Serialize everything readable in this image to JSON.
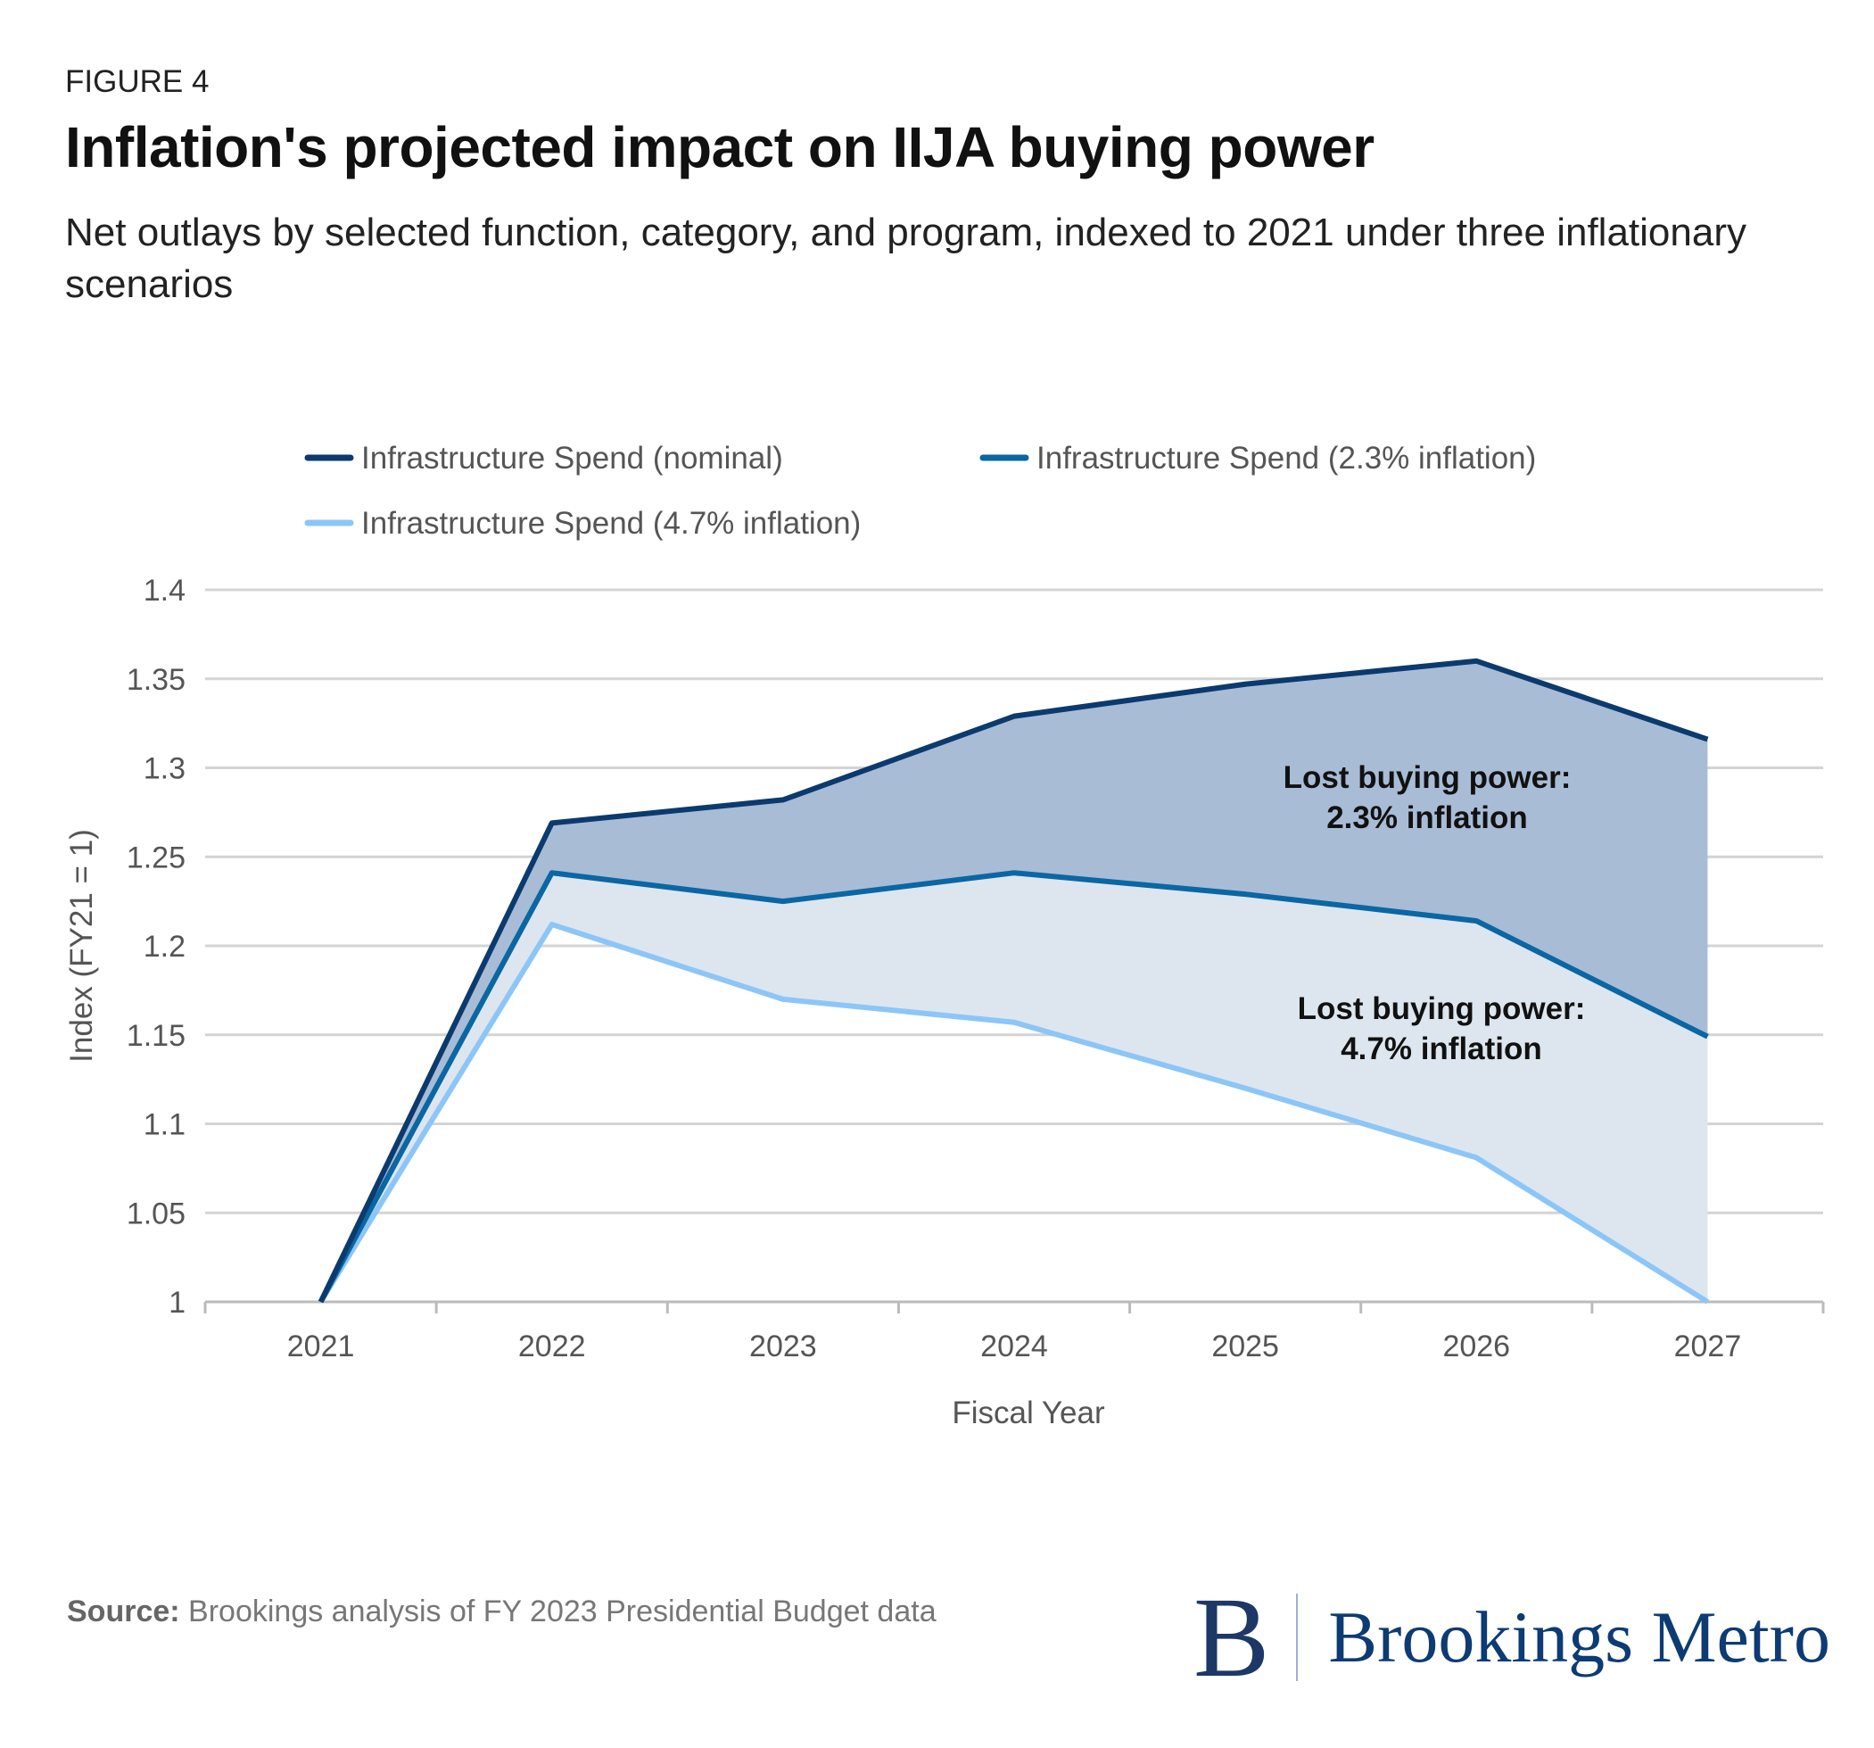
{
  "figure_label": "FIGURE 4",
  "title": "Inflation's projected impact on IIJA buying power",
  "subtitle": "Net outlays by selected function, category, and program, indexed to 2021 under three inflationary scenarios",
  "source_label": "Source:",
  "source_text": " Brookings analysis of FY 2023 Presidential Budget data",
  "logo": {
    "mark": "B",
    "name": "Brookings Metro"
  },
  "chart_data": {
    "type": "area",
    "title": "",
    "xlabel": "Fiscal Year",
    "ylabel": "Index (FY21 = 1)",
    "ylim": [
      1,
      1.4
    ],
    "yticks": [
      1,
      1.05,
      1.1,
      1.15,
      1.2,
      1.25,
      1.3,
      1.35,
      1.4
    ],
    "ytick_labels": [
      "1",
      "1.05",
      "1.1",
      "1.15",
      "1.2",
      "1.25",
      "1.3",
      "1.35",
      "1.4"
    ],
    "categories": [
      "2021",
      "2022",
      "2023",
      "2024",
      "2025",
      "2026",
      "2027"
    ],
    "grid": true,
    "legend_placement": "top",
    "series": [
      {
        "name": "Infrastructure Spend (nominal)",
        "color": "#0b3a6e",
        "values": [
          1,
          1.269,
          1.282,
          1.329,
          1.347,
          1.36,
          1.316
        ]
      },
      {
        "name": "Infrastructure Spend (2.3% inflation)",
        "color": "#0a67a3",
        "values": [
          1,
          1.241,
          1.225,
          1.241,
          1.229,
          1.214,
          1.149
        ]
      },
      {
        "name": "Infrastructure Spend (4.7% inflation)",
        "color": "#8cc6f7",
        "values": [
          1,
          1.212,
          1.17,
          1.157,
          1.12,
          1.081,
          1.0
        ]
      }
    ],
    "fills": {
      "upper": "#a8bcd6",
      "lower": "#dde6ee"
    },
    "annotations": [
      {
        "line1": "Lost buying power:",
        "line2": "2.3% inflation",
        "x": "2026",
        "y": 1.28
      },
      {
        "line1": "Lost buying power:",
        "line2": "4.7% inflation",
        "x": "2026",
        "y": 1.15
      }
    ]
  }
}
